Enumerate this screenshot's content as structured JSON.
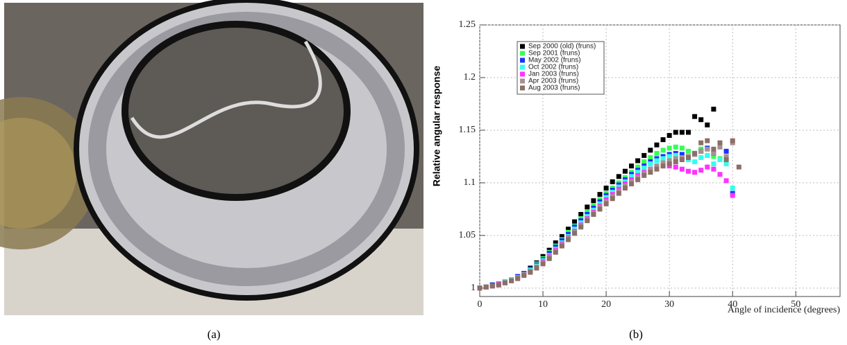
{
  "panels": {
    "photo_caption": "(a)",
    "chart_caption": "(b)"
  },
  "chart_data": {
    "type": "scatter",
    "x_label": "Angle of incidence (degrees)",
    "y_label": "Relative angular response",
    "x": [
      0,
      1,
      2,
      3,
      4,
      5,
      6,
      7,
      8,
      9,
      10,
      11,
      12,
      13,
      14,
      15,
      16,
      17,
      18,
      19,
      20,
      21,
      22,
      23,
      24,
      25,
      26,
      27,
      28,
      29,
      30,
      31,
      32,
      33,
      34,
      35,
      36,
      37,
      38,
      39,
      40,
      41
    ],
    "xlim": [
      0,
      57
    ],
    "xticks": [
      0,
      10,
      20,
      30,
      40,
      50
    ],
    "ylim": [
      0.992,
      1.25
    ],
    "yticks": [
      1,
      1.05,
      1.1,
      1.15,
      1.2,
      1.25
    ],
    "grid": true,
    "legend": "top-left",
    "series": [
      {
        "name": "Sep 2000 (old) (fruns)",
        "color": "#000000",
        "values": [
          1.0,
          1.001,
          1.003,
          1.004,
          1.006,
          1.008,
          1.011,
          1.014,
          1.019,
          1.024,
          1.03,
          1.036,
          1.043,
          1.049,
          1.056,
          1.063,
          1.07,
          1.077,
          1.083,
          1.089,
          1.095,
          1.101,
          1.106,
          1.111,
          1.116,
          1.121,
          1.126,
          1.131,
          1.136,
          1.141,
          1.145,
          1.148,
          1.148,
          1.148,
          1.163,
          1.16,
          1.155,
          1.17,
          null,
          null,
          null,
          null
        ]
      },
      {
        "name": "Sep 2001 (fruns)",
        "color": "#33ff55",
        "values": [
          1.0,
          1.001,
          1.003,
          1.004,
          1.006,
          1.008,
          1.011,
          1.014,
          1.018,
          1.023,
          1.028,
          1.034,
          1.04,
          1.046,
          1.053,
          1.059,
          1.066,
          1.072,
          1.078,
          1.084,
          1.09,
          1.095,
          1.1,
          1.105,
          1.11,
          1.115,
          1.12,
          1.124,
          1.128,
          1.131,
          1.133,
          1.134,
          1.133,
          1.13,
          1.128,
          1.132,
          1.126,
          1.125,
          1.123,
          1.122,
          null,
          null
        ]
      },
      {
        "name": "May 2002 (fruns)",
        "color": "#1a33ff",
        "values": [
          1.0,
          1.001,
          1.003,
          1.004,
          1.006,
          1.008,
          1.011,
          1.014,
          1.018,
          1.022,
          1.027,
          1.033,
          1.039,
          1.045,
          1.051,
          1.058,
          1.064,
          1.07,
          1.076,
          1.082,
          1.088,
          1.093,
          1.098,
          1.103,
          1.108,
          1.112,
          1.116,
          1.12,
          1.123,
          1.125,
          1.127,
          1.128,
          1.127,
          1.125,
          1.127,
          1.13,
          1.133,
          1.128,
          1.135,
          1.13,
          1.09,
          null
        ]
      },
      {
        "name": "Oct 2002 (fruns)",
        "color": "#33ffee",
        "values": [
          1.0,
          1.001,
          1.002,
          1.004,
          1.006,
          1.008,
          1.01,
          1.013,
          1.017,
          1.021,
          1.026,
          1.031,
          1.037,
          1.043,
          1.049,
          1.056,
          1.062,
          1.068,
          1.074,
          1.08,
          1.086,
          1.091,
          1.096,
          1.101,
          1.106,
          1.11,
          1.114,
          1.118,
          1.121,
          1.123,
          1.125,
          1.126,
          1.124,
          1.122,
          1.12,
          1.124,
          1.126,
          1.118,
          1.122,
          1.118,
          1.095,
          null
        ]
      },
      {
        "name": "Jan 2003 (fruns)",
        "color": "#ff33ff",
        "values": [
          1.0,
          1.001,
          1.002,
          1.004,
          1.005,
          1.007,
          1.01,
          1.013,
          1.016,
          1.02,
          1.025,
          1.03,
          1.036,
          1.042,
          1.048,
          1.054,
          1.06,
          1.066,
          1.072,
          1.078,
          1.084,
          1.089,
          1.094,
          1.099,
          1.103,
          1.107,
          1.11,
          1.113,
          1.115,
          1.116,
          1.116,
          1.115,
          1.113,
          1.111,
          1.11,
          1.112,
          1.115,
          1.113,
          1.108,
          1.102,
          1.088,
          null
        ]
      },
      {
        "name": "Apr 2003 (fruns)",
        "color": "#a89090",
        "values": [
          1.0,
          1.001,
          1.002,
          1.003,
          1.005,
          1.007,
          1.01,
          1.013,
          1.016,
          1.02,
          1.024,
          1.029,
          1.035,
          1.041,
          1.047,
          1.053,
          1.059,
          1.065,
          1.071,
          1.077,
          1.082,
          1.087,
          1.092,
          1.097,
          1.101,
          1.105,
          1.109,
          1.113,
          1.116,
          1.119,
          1.121,
          1.123,
          1.124,
          1.125,
          1.127,
          1.13,
          1.132,
          1.128,
          1.134,
          1.125,
          1.138,
          null
        ]
      },
      {
        "name": "Aug 2003 (fruns)",
        "color": "#8b6f66",
        "values": [
          1.0,
          1.001,
          1.002,
          1.003,
          1.005,
          1.007,
          1.009,
          1.012,
          1.015,
          1.019,
          1.023,
          1.028,
          1.034,
          1.04,
          1.046,
          1.052,
          1.058,
          1.064,
          1.07,
          1.075,
          1.08,
          1.085,
          1.09,
          1.095,
          1.099,
          1.103,
          1.107,
          1.11,
          1.113,
          1.116,
          1.118,
          1.12,
          1.122,
          1.124,
          1.128,
          1.138,
          1.14,
          1.132,
          1.138,
          1.122,
          1.14,
          1.115
        ]
      }
    ]
  }
}
